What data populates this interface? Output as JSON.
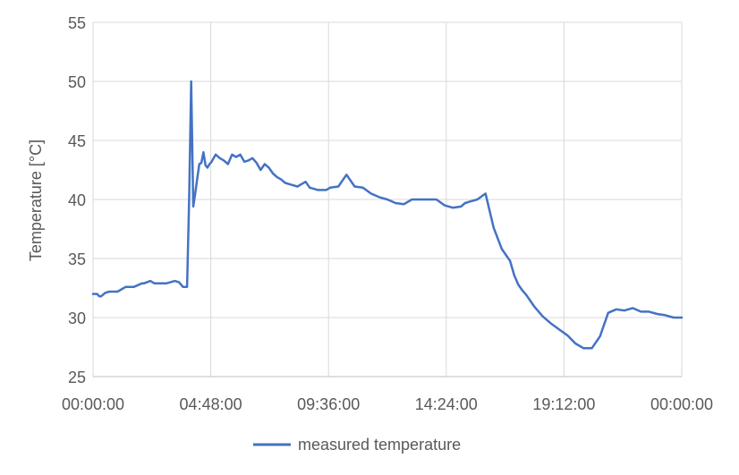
{
  "chart_data": {
    "type": "line",
    "title": "",
    "xlabel": "",
    "ylabel": "Temperature [°C]",
    "ylim": [
      25,
      55
    ],
    "yticks": [
      "25",
      "30",
      "35",
      "40",
      "45",
      "50",
      "55"
    ],
    "xlim": [
      "00:00:00",
      "24:00:00"
    ],
    "xtick_labels": [
      "00:00:00",
      "04:48:00",
      "09:36:00",
      "14:24:00",
      "19:12:00",
      "00:00:00"
    ],
    "grid": true,
    "legend": "bottom-center",
    "series": [
      {
        "name": "measured temperature",
        "color": "#4472C4",
        "x": [
          "00:00",
          "00:10",
          "00:15",
          "00:20",
          "00:30",
          "00:40",
          "00:50",
          "01:00",
          "01:20",
          "01:40",
          "02:00",
          "02:05",
          "02:20",
          "02:30",
          "02:35",
          "03:00",
          "03:20",
          "03:30",
          "03:40",
          "03:50",
          "03:55",
          "04:00",
          "04:05",
          "04:10",
          "04:15",
          "04:20",
          "04:25",
          "04:30",
          "04:35",
          "04:40",
          "04:45",
          "04:50",
          "05:00",
          "05:10",
          "05:20",
          "05:30",
          "05:40",
          "05:50",
          "06:00",
          "06:10",
          "06:20",
          "06:30",
          "06:40",
          "06:50",
          "07:00",
          "07:10",
          "07:20",
          "07:30",
          "07:40",
          "07:50",
          "08:00",
          "08:10",
          "08:20",
          "08:30",
          "08:40",
          "08:50",
          "09:00",
          "09:10",
          "09:20",
          "09:30",
          "09:40",
          "10:00",
          "10:20",
          "10:40",
          "11:00",
          "11:20",
          "11:40",
          "12:00",
          "12:20",
          "12:40",
          "13:00",
          "13:20",
          "13:40",
          "14:00",
          "14:20",
          "14:40",
          "15:00",
          "15:10",
          "15:20",
          "15:40",
          "16:00",
          "16:20",
          "16:40",
          "17:00",
          "17:10",
          "17:20",
          "17:30",
          "17:40",
          "17:50",
          "18:00",
          "18:20",
          "18:40",
          "19:00",
          "19:20",
          "19:40",
          "20:00",
          "20:20",
          "20:40",
          "21:00",
          "21:20",
          "21:40",
          "22:00",
          "22:20",
          "22:40",
          "23:00",
          "23:20",
          "23:40",
          "24:00"
        ],
        "values": [
          32.0,
          32.0,
          31.8,
          31.8,
          32.1,
          32.2,
          32.2,
          32.2,
          32.6,
          32.6,
          32.9,
          32.9,
          33.1,
          32.9,
          32.9,
          32.9,
          33.1,
          33.0,
          32.6,
          32.6,
          40.0,
          50.0,
          39.4,
          40.5,
          41.8,
          43.0,
          43.1,
          44.0,
          42.9,
          42.7,
          43.0,
          43.2,
          43.8,
          43.5,
          43.3,
          43.0,
          43.8,
          43.6,
          43.8,
          43.2,
          43.3,
          43.5,
          43.1,
          42.5,
          43.0,
          42.7,
          42.2,
          41.9,
          41.7,
          41.4,
          41.3,
          41.2,
          41.1,
          41.3,
          41.5,
          41.0,
          40.9,
          40.8,
          40.8,
          40.8,
          41.0,
          41.1,
          42.1,
          41.1,
          41.0,
          40.5,
          40.2,
          40.0,
          39.7,
          39.6,
          40.0,
          40.0,
          40.0,
          40.0,
          39.5,
          39.3,
          39.4,
          39.7,
          39.8,
          40.0,
          40.5,
          37.6,
          35.8,
          34.8,
          33.6,
          32.8,
          32.3,
          31.9,
          31.4,
          30.9,
          30.1,
          29.5,
          29.0,
          28.5,
          27.8,
          27.4,
          27.4,
          28.4,
          30.4,
          30.7,
          30.6,
          30.8,
          30.5,
          30.5,
          30.3,
          30.2,
          30.0,
          30.0
        ]
      }
    ]
  }
}
